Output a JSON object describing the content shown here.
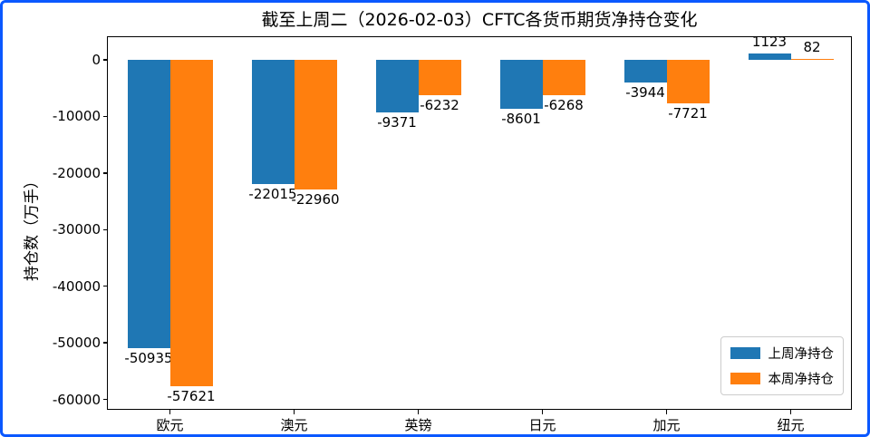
{
  "window": {
    "border_color": "#0a58ff",
    "background": "#ffffff"
  },
  "chart_data": {
    "type": "bar",
    "title": "截至上周二（2026-02-03）CFTC各货币期货净持仓变化",
    "xlabel": "",
    "ylabel": "持仓数（万手）",
    "categories": [
      "欧元",
      "澳元",
      "英镑",
      "日元",
      "加元",
      "纽元"
    ],
    "series": [
      {
        "name": "上周净持仓",
        "color": "#1f77b4",
        "values": [
          -50935,
          -22015,
          -9371,
          -8601,
          -3944,
          1123
        ]
      },
      {
        "name": "本周净持仓",
        "color": "#ff7f0e",
        "values": [
          -57621,
          -22960,
          -6232,
          -6268,
          -7721,
          82
        ]
      }
    ],
    "yticks": [
      0,
      -10000,
      -20000,
      -30000,
      -40000,
      -50000,
      -60000
    ],
    "ylim": [
      -62000,
      4000
    ],
    "grid": false,
    "legend_position": "lower right",
    "bar_labels": true,
    "axis_color": "#000000"
  }
}
